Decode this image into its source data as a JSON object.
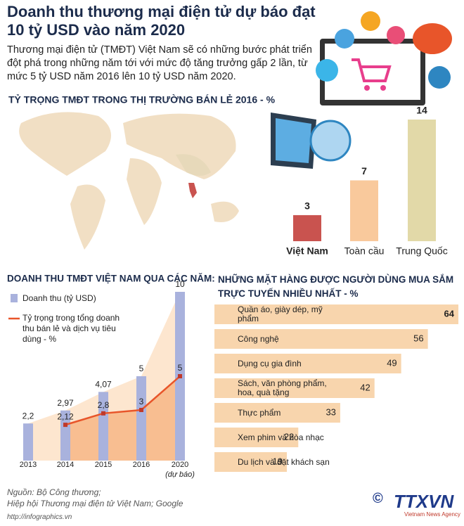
{
  "header": {
    "title": "Doanh thu thương mại điện tử dự báo đạt 10 tỷ USD vào năm 2020",
    "subtitle": "Thương mại điện tử (TMĐT) Việt Nam sẽ có những bước phát triển đột phá trong những năm tới với mức độ tăng trưởng gấp 2 lần, từ mức 5 tỷ USD năm 2016 lên 10 tỷ USD năm 2020."
  },
  "chart_data": [
    {
      "type": "bar",
      "title": "TỶ TRỌNG TMĐT TRONG THỊ TRƯỜNG BÁN LẺ 2016 - %",
      "categories": [
        "Việt Nam",
        "Toàn cầu",
        "Trung Quốc"
      ],
      "values": [
        3,
        7,
        14
      ],
      "colors": [
        "#c9534f",
        "#f9c99c",
        "#e2d9a8"
      ]
    },
    {
      "type": "bar-line",
      "title": "DOANH THU TMĐT VIỆT NAM QUA CÁC NĂM:",
      "categories": [
        "2013",
        "2014",
        "2015",
        "2016",
        "2020"
      ],
      "forecast_note": "(dự báo)",
      "series": [
        {
          "name": "Doanh thu (tỷ USD)",
          "type": "bar",
          "color": "#a9b2dd",
          "values": [
            2.2,
            2.97,
            4.07,
            5,
            10
          ],
          "value_labels": [
            "2,2",
            "2,97",
            "4,07",
            "5",
            "10"
          ]
        },
        {
          "name": "Tỷ trọng trong tổng doanh thu bán lẻ và dịch vụ tiêu dùng - %",
          "type": "line",
          "axis": "y2",
          "color": "#e8552a",
          "values": [
            null,
            2.12,
            2.8,
            3,
            5
          ],
          "value_labels": [
            null,
            "2,12",
            "2,8",
            "3",
            "5"
          ]
        }
      ]
    },
    {
      "type": "hbar",
      "title": "NHỮNG MẶT HÀNG ĐƯỢC NGƯỜI DÙNG MUA SẮM TRỰC TUYẾN NHIỀU NHẤT - %",
      "categories": [
        "Quần áo, giày dép, mỹ phẩm",
        "Công nghệ",
        "Dụng cụ gia đình",
        "Sách, văn phòng phẩm, hoa, quà tặng",
        "Thực phẩm",
        "Xem phim và hòa nhạc",
        "Du lịch và đặt khách sạn"
      ],
      "values": [
        64,
        56,
        49,
        42,
        33,
        22,
        19
      ],
      "color": "#f8d5ad"
    }
  ],
  "footer": {
    "sources": [
      "Nguồn: Bộ Công thương;",
      "Hiệp hội Thương mại điện tử Việt Nam; Google"
    ],
    "url": "http://infographics.vn",
    "logo": "TTXVN",
    "agency": "Vietnam News Agency"
  }
}
